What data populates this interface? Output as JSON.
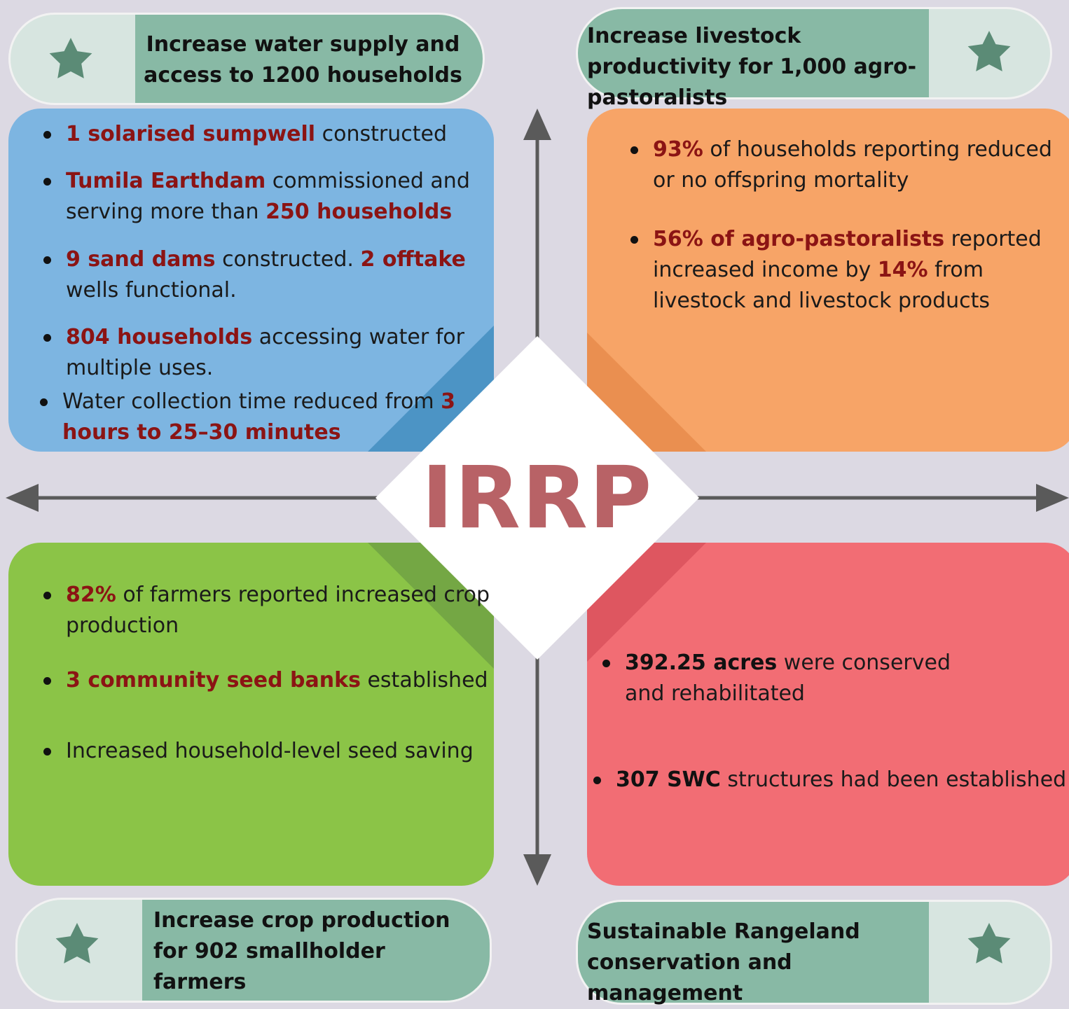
{
  "title": "IRRP",
  "quadrants": [
    {
      "goal": "Increase water supply and access to 1200 households",
      "results": [
        [
          {
            "text": "1 solarised sumpwell",
            "emphasis": true
          },
          {
            "text": " constructed"
          }
        ],
        [
          {
            "text": "Tumila Earthdam",
            "emphasis": true
          },
          {
            "text": " commissioned and serving  more than "
          },
          {
            "text": "250 households",
            "emphasis": true
          }
        ],
        [
          {
            "text": "9 sand dams",
            "emphasis": true
          },
          {
            "text": " constructed. "
          },
          {
            "text": "2 offtake",
            "emphasis": true
          },
          {
            "text": " wells functional."
          }
        ],
        [
          {
            "text": "804 households",
            "emphasis": true
          },
          {
            "text": " accessing water for multiple uses."
          }
        ],
        [
          {
            "text": "Water collection time reduced from "
          },
          {
            "text": "3 hours to 25–30 minutes",
            "emphasis": true
          }
        ]
      ]
    },
    {
      "goal": "Increase livestock productivity for 1,000 agro-pastoralists",
      "results": [
        [
          {
            "text": "93%",
            "emphasis": true
          },
          {
            "text": " of households reporting reduced or no offspring mortality"
          }
        ],
        [
          {
            "text": "56% of agro-pastoralists",
            "emphasis": true
          },
          {
            "text": " reported increased income by "
          },
          {
            "text": "14%",
            "emphasis": true
          },
          {
            "text": " from livestock and livestock products"
          }
        ]
      ]
    },
    {
      "goal": "Increase crop production for 902 smallholder farmers",
      "results": [
        [
          {
            "text": "82%",
            "emphasis": true
          },
          {
            "text": " of farmers reported increased crop production"
          }
        ],
        [
          {
            "text": "3 community seed banks",
            "emphasis": true
          },
          {
            "text": " established"
          }
        ],
        [
          {
            "text": "Increased household-level seed saving"
          }
        ]
      ]
    },
    {
      "goal": "Sustainable Rangeland conservation and management",
      "results": [
        [
          {
            "text": "392.25 acres",
            "emphasis": true
          },
          {
            "text": " were conserved and rehabilitated"
          }
        ],
        [
          {
            "text": "307 SWC",
            "emphasis": true
          },
          {
            "text": " structures had been established"
          }
        ]
      ]
    }
  ]
}
